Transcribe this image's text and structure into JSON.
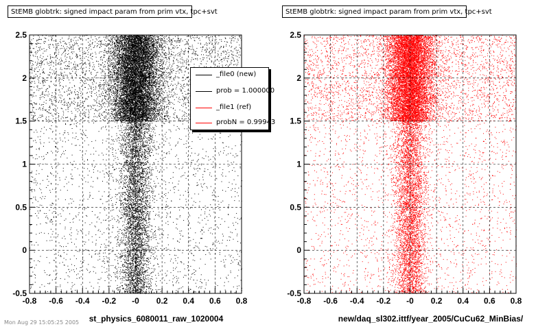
{
  "chart_data": [
    {
      "type": "scatter",
      "title": "StEMB globtrk: signed impact param from prim vtx, tpc+svt",
      "xlabel": "st_physics_6080011_raw_1020004",
      "ylabel": "",
      "xlim": [
        -0.8,
        0.8
      ],
      "ylim": [
        -0.5,
        2.5
      ],
      "xticks": [
        "-0.8",
        "-0.6",
        "-0.4",
        "-0.2",
        "-0",
        "0.2",
        "0.4",
        "0.6",
        "0.8"
      ],
      "yticks": [
        "-0.5",
        "0",
        "0.5",
        "1",
        "1.5",
        "2",
        "2.5"
      ],
      "grid": true,
      "point_color": "#000000",
      "distribution": {
        "center_x": 0.0,
        "sigma_x_high": 0.09,
        "sigma_x_low": 0.06,
        "dense_band_y": [
          1.5,
          2.5
        ],
        "background_density": "uniform sparse"
      },
      "legend": {
        "position": "top-right",
        "entries": [
          {
            "label": "_file0 (new)",
            "color": "#000000"
          },
          {
            "label": "prob = 1.000000",
            "color": "#000000"
          },
          {
            "label": "_file1 (ref)",
            "color": "#ff0000"
          },
          {
            "label": "probN = 0.99943",
            "color": "#ff0000"
          }
        ]
      }
    },
    {
      "type": "scatter",
      "title": "StEMB globtrk: signed impact param from prim vtx, tpc+svt",
      "xlabel": "new/daq_sl302.ittf/year_2005/CuCu62_MinBias/",
      "ylabel": "",
      "xlim": [
        -0.8,
        0.8
      ],
      "ylim": [
        -0.5,
        2.5
      ],
      "xticks": [
        "-0.8",
        "-0.6",
        "-0.4",
        "-0.2",
        "-0",
        "0.2",
        "0.4",
        "0.6",
        "0.8"
      ],
      "yticks": [
        "-0.5",
        "0",
        "0.5",
        "1",
        "1.5",
        "2",
        "2.5"
      ],
      "grid": true,
      "point_color": "#ff0000",
      "distribution": {
        "center_x": 0.0,
        "sigma_x_high": 0.09,
        "sigma_x_low": 0.06,
        "dense_band_y": [
          1.5,
          2.5
        ],
        "background_density": "uniform sparse"
      }
    }
  ],
  "footer": {
    "stamp": "Mon Aug 29 15:05:25 2005"
  }
}
